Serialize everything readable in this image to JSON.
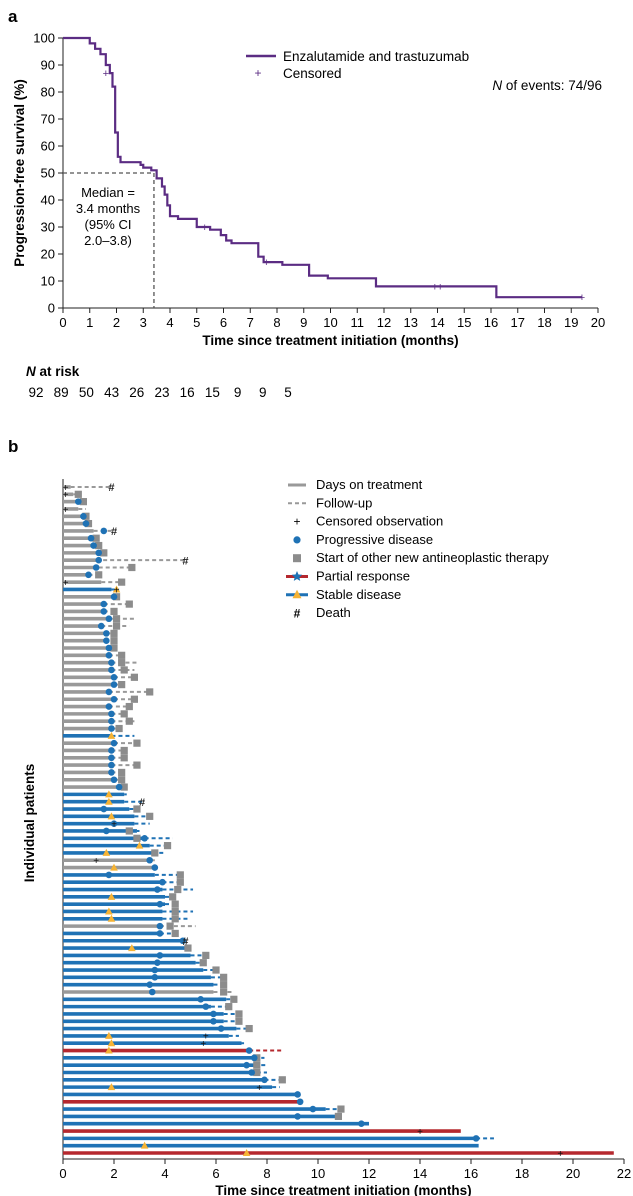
{
  "panel_a": {
    "panel_label": "a",
    "legend": {
      "line": "Enzalutamide and trastuzumab",
      "censored": "Censored"
    },
    "events_prefix": "N",
    "events_text": " of events: 74/96",
    "median": [
      "Median =",
      "3.4 months",
      "(95% CI",
      "2.0–3.8)"
    ],
    "at_risk_n": "N",
    "at_risk_rest": " at risk",
    "at_risk_values": [
      "92",
      "89",
      "50",
      "43",
      "26",
      "23",
      "16",
      "15",
      "9",
      "9",
      "5"
    ]
  },
  "panel_b": {
    "panel_label": "b",
    "legend": [
      "Days on treatment",
      "Follow-up",
      "Censored observation",
      "Progressive disease",
      "Start of other new antineoplastic therapy",
      "Partial response",
      "Stable disease",
      "Death"
    ]
  },
  "colors": {
    "km_line": "#5b2c83",
    "gray": "#999999",
    "blue": "#1f72b5",
    "red": "#b5282e",
    "stable": "#f5b335",
    "box": "#8c8c8c"
  },
  "chart_data": [
    {
      "type": "line",
      "title": "",
      "xlabel": "Time since treatment initiation (months)",
      "ylabel": "Progression-free survival (%)",
      "xlim": [
        0,
        20
      ],
      "ylim": [
        0,
        100
      ],
      "xticks": [
        0,
        1,
        2,
        3,
        4,
        5,
        6,
        7,
        8,
        9,
        10,
        11,
        12,
        13,
        14,
        15,
        16,
        17,
        18,
        19,
        20
      ],
      "yticks": [
        0,
        10,
        20,
        30,
        40,
        50,
        60,
        70,
        80,
        90,
        100
      ],
      "series": [
        {
          "name": "Enzalutamide and trastuzumab",
          "x": [
            0,
            1.0,
            1.2,
            1.4,
            1.6,
            1.75,
            1.85,
            1.95,
            2.05,
            2.15,
            2.3,
            2.9,
            3.0,
            3.3,
            3.5,
            3.7,
            3.8,
            3.9,
            4.0,
            4.15,
            4.3,
            4.6,
            5.0,
            5.5,
            5.9,
            6.1,
            6.3,
            7.0,
            7.3,
            7.5,
            7.8,
            8.2,
            9.2,
            9.9,
            11.7,
            13.4,
            16.2,
            19.4
          ],
          "y": [
            100,
            98,
            96,
            94,
            90,
            87,
            82,
            65,
            56,
            54,
            54,
            53,
            52,
            51,
            48,
            45,
            42,
            38,
            34,
            34,
            33,
            33,
            30,
            29,
            27,
            25,
            24,
            24,
            19,
            17,
            17,
            16,
            12,
            11,
            8,
            8,
            4,
            4
          ]
        }
      ],
      "censored": [
        [
          1.6,
          87
        ],
        [
          5.3,
          30
        ],
        [
          7.6,
          17
        ],
        [
          13.9,
          8
        ],
        [
          14.1,
          8
        ],
        [
          19.4,
          4
        ]
      ],
      "median_months": 3.4
    },
    {
      "type": "swimmer",
      "title": "",
      "xlabel": "Time since treatment initiation (months)",
      "ylabel": "Individual patients",
      "xlim": [
        0,
        22
      ],
      "xticks": [
        0,
        2,
        4,
        6,
        8,
        10,
        12,
        14,
        16,
        18,
        20,
        22
      ],
      "rows": [
        {
          "c": "g",
          "t": 0.3,
          "f": 1.9,
          "cen": 0.1,
          "dth": 1.9
        },
        {
          "c": "g",
          "t": 0.4,
          "f": 0.6,
          "box": 0.6,
          "cen": 0.1
        },
        {
          "c": "g",
          "t": 0.5,
          "f": 0.8,
          "pd": 0.6,
          "box": 0.8
        },
        {
          "c": "g",
          "t": 0.6,
          "f": 0.9,
          "cen": 0.1
        },
        {
          "c": "g",
          "t": 0.7,
          "f": 0.9,
          "pd": 0.8,
          "box": 0.9
        },
        {
          "c": "g",
          "t": 0.8,
          "f": 1.0,
          "pd": 0.9,
          "box": 1.0
        },
        {
          "c": "g",
          "t": 1.2,
          "f": 2.0,
          "pd": 1.6,
          "dth": 2.0
        },
        {
          "c": "g",
          "t": 1.0,
          "f": 1.3,
          "pd": 1.1,
          "box": 1.3
        },
        {
          "c": "g",
          "t": 1.3,
          "f": 1.4,
          "pd": 1.2,
          "box": 1.4
        },
        {
          "c": "g",
          "t": 1.5,
          "f": 1.6,
          "pd": 1.4,
          "box": 1.6
        },
        {
          "c": "g",
          "t": 1.3,
          "f": 4.8,
          "pd": 1.4,
          "dth": 4.8
        },
        {
          "c": "g",
          "t": 1.4,
          "f": 2.7,
          "pd": 1.3,
          "box": 2.7
        },
        {
          "c": "g",
          "t": 1.0,
          "f": 1.4,
          "pd": 1.0,
          "box": 1.4
        },
        {
          "c": "g",
          "t": 1.5,
          "f": 2.3,
          "cen": 0.1,
          "box": 2.3
        },
        {
          "c": "b",
          "t": 1.9,
          "f": 2.2,
          "sd": 2.1,
          "cen": 2.1
        },
        {
          "c": "g",
          "t": 2.1,
          "f": 2.1,
          "pd": 2.0,
          "box": 2.1
        },
        {
          "c": "g",
          "t": 1.6,
          "f": 2.6,
          "pd": 1.6,
          "box": 2.6
        },
        {
          "c": "g",
          "t": 1.6,
          "f": 2.0,
          "pd": 1.6,
          "box": 2.0
        },
        {
          "c": "g",
          "t": 1.8,
          "f": 2.8,
          "pd": 1.8,
          "box": 2.1
        },
        {
          "c": "g",
          "t": 1.5,
          "f": 2.6,
          "pd": 1.5,
          "box": 2.1
        },
        {
          "c": "g",
          "t": 1.7,
          "f": 2.0,
          "pd": 1.7,
          "box": 2.0
        },
        {
          "c": "g",
          "t": 1.6,
          "f": 2.0,
          "pd": 1.7,
          "box": 2.0
        },
        {
          "c": "g",
          "t": 1.8,
          "f": 2.0,
          "pd": 1.8,
          "box": 2.0
        },
        {
          "c": "g",
          "t": 1.8,
          "f": 2.3,
          "pd": 1.8,
          "box": 2.3
        },
        {
          "c": "g",
          "t": 1.9,
          "f": 2.9,
          "pd": 1.9,
          "box": 2.3
        },
        {
          "c": "g",
          "t": 1.9,
          "f": 2.8,
          "pd": 1.9,
          "box": 2.4
        },
        {
          "c": "g",
          "t": 2.0,
          "f": 2.8,
          "pd": 2.0,
          "box": 2.8
        },
        {
          "c": "g",
          "t": 2.0,
          "f": 2.3,
          "pd": 2.0,
          "box": 2.3
        },
        {
          "c": "g",
          "t": 1.8,
          "f": 3.4,
          "pd": 1.8,
          "box": 3.4
        },
        {
          "c": "g",
          "t": 2.0,
          "f": 2.8,
          "pd": 2.0,
          "box": 2.8
        },
        {
          "c": "g",
          "t": 1.8,
          "f": 2.6,
          "pd": 1.8,
          "box": 2.6
        },
        {
          "c": "g",
          "t": 1.9,
          "f": 2.4,
          "pd": 1.9,
          "box": 2.4
        },
        {
          "c": "g",
          "t": 1.9,
          "f": 2.8,
          "pd": 1.9,
          "box": 2.6
        },
        {
          "c": "g",
          "t": 1.9,
          "f": 2.2,
          "pd": 1.9,
          "box": 2.2
        },
        {
          "c": "b",
          "t": 1.9,
          "f": 2.8,
          "sd": 1.9
        },
        {
          "c": "g",
          "t": 2.0,
          "f": 2.9,
          "pd": 2.0,
          "box": 2.9
        },
        {
          "c": "g",
          "t": 1.9,
          "f": 2.4,
          "pd": 1.9,
          "box": 2.4
        },
        {
          "c": "g",
          "t": 1.9,
          "f": 2.4,
          "pd": 1.9,
          "box": 2.4
        },
        {
          "c": "g",
          "t": 1.9,
          "f": 2.9,
          "pd": 1.9,
          "box": 2.9
        },
        {
          "c": "g",
          "t": 1.9,
          "f": 2.3,
          "pd": 1.9,
          "box": 2.3
        },
        {
          "c": "g",
          "t": 2.0,
          "f": 2.3,
          "pd": 2.0,
          "box": 2.3
        },
        {
          "c": "g",
          "t": 2.2,
          "f": 2.4,
          "pd": 2.2,
          "box": 2.4
        },
        {
          "c": "b",
          "t": 2.4,
          "f": 2.5,
          "sd": 1.8
        },
        {
          "c": "b",
          "t": 2.4,
          "f": 3.1,
          "sd": 1.8,
          "dth": 3.1
        },
        {
          "c": "b",
          "t": 2.6,
          "f": 2.9,
          "pd": 1.6,
          "box": 2.9
        },
        {
          "c": "b",
          "t": 2.8,
          "f": 3.4,
          "sd": 1.9,
          "box": 3.4
        },
        {
          "c": "b",
          "t": 2.8,
          "f": 3.4,
          "pd": 2.0,
          "cen": 2.0
        },
        {
          "c": "b",
          "t": 2.9,
          "f": 3.0,
          "pd": 1.7,
          "box": 2.6
        },
        {
          "c": "b",
          "t": 3.2,
          "f": 4.3,
          "pd": 3.2,
          "box": 2.9
        },
        {
          "c": "b",
          "t": 3.4,
          "f": 4.1,
          "sd": 3.0,
          "box": 4.1
        },
        {
          "c": "b",
          "t": 3.5,
          "f": 4.0,
          "sd": 1.7,
          "box": 3.6
        },
        {
          "c": "g",
          "t": 3.5,
          "f": 3.6,
          "pd": 3.4,
          "cen": 1.3
        },
        {
          "c": "g",
          "t": 3.6,
          "f": 3.6,
          "sd": 2.0,
          "pd": 3.6
        },
        {
          "c": "b",
          "t": 3.6,
          "f": 4.6,
          "pd": 1.8,
          "box": 4.6
        },
        {
          "c": "b",
          "t": 3.9,
          "f": 4.6,
          "pd": 3.9,
          "box": 4.6
        },
        {
          "c": "b",
          "t": 3.9,
          "f": 5.1,
          "pd": 3.7,
          "box": 4.5
        },
        {
          "c": "b",
          "t": 4.0,
          "f": 4.3,
          "sd": 1.9,
          "box": 4.3
        },
        {
          "c": "b",
          "t": 4.0,
          "f": 4.4,
          "pd": 3.8,
          "box": 4.4
        },
        {
          "c": "b",
          "t": 3.9,
          "f": 5.1,
          "sd": 1.8,
          "box": 4.4
        },
        {
          "c": "b",
          "t": 3.9,
          "f": 4.9,
          "sd": 1.9,
          "box": 4.4
        },
        {
          "c": "g",
          "t": 3.8,
          "f": 5.2,
          "pd": 3.8,
          "box": 4.2
        },
        {
          "c": "b",
          "t": 3.8,
          "f": 4.4,
          "pd": 3.8,
          "box": 4.4
        },
        {
          "c": "b",
          "t": 4.7,
          "f": 4.8,
          "pd": 4.7,
          "dth": 4.8
        },
        {
          "c": "b",
          "t": 4.8,
          "f": 4.9,
          "sd": 2.7,
          "box": 4.9
        },
        {
          "c": "b",
          "t": 5.0,
          "f": 5.6,
          "pd": 3.8,
          "box": 5.6
        },
        {
          "c": "b",
          "t": 5.2,
          "f": 5.5,
          "pd": 3.7,
          "box": 5.5
        },
        {
          "c": "b",
          "t": 5.5,
          "f": 6.0,
          "pd": 3.6,
          "box": 6.0
        },
        {
          "c": "b",
          "t": 5.8,
          "f": 6.3,
          "pd": 3.6,
          "box": 6.3
        },
        {
          "c": "b",
          "t": 5.9,
          "f": 6.3,
          "pd": 3.4,
          "box": 6.3
        },
        {
          "c": "g",
          "t": 5.9,
          "f": 6.7,
          "pd": 3.5,
          "box": 6.3
        },
        {
          "c": "b",
          "t": 6.4,
          "f": 6.7,
          "pd": 5.4,
          "box": 6.7
        },
        {
          "c": "b",
          "t": 5.8,
          "f": 6.5,
          "pd": 5.6,
          "box": 6.5
        },
        {
          "c": "b",
          "t": 6.3,
          "f": 6.9,
          "pd": 5.9,
          "box": 6.9
        },
        {
          "c": "b",
          "t": 6.3,
          "f": 6.9,
          "pd": 5.9,
          "box": 6.9
        },
        {
          "c": "b",
          "t": 6.8,
          "f": 7.3,
          "pd": 6.2,
          "box": 7.3
        },
        {
          "c": "b",
          "t": 6.5,
          "f": 6.9,
          "sd": 1.8,
          "cen": 5.6
        },
        {
          "c": "b",
          "t": 7.0,
          "f": 7.1,
          "sd": 1.9,
          "cen": 5.5
        },
        {
          "c": "r",
          "t": 7.3,
          "f": 8.6,
          "sd": 1.8,
          "pd": 7.3
        },
        {
          "c": "b",
          "t": 7.5,
          "f": 7.9,
          "pd": 7.5,
          "box": 7.6
        },
        {
          "c": "b",
          "t": 7.5,
          "f": 8.0,
          "pd": 7.2,
          "box": 7.6
        },
        {
          "c": "b",
          "t": 7.6,
          "f": 8.0,
          "pd": 7.4,
          "box": 7.6
        },
        {
          "c": "b",
          "t": 7.9,
          "f": 8.6,
          "pd": 7.9,
          "box": 8.6
        },
        {
          "c": "b",
          "t": 8.2,
          "f": 8.5,
          "sd": 1.9,
          "cen": 7.7
        },
        {
          "c": "b",
          "t": 9.2,
          "f": 9.3,
          "pd": 9.2
        },
        {
          "c": "r",
          "t": 9.3,
          "f": 9.3,
          "pd": 9.3
        },
        {
          "c": "b",
          "t": 10.3,
          "f": 10.9,
          "pd": 9.8,
          "box": 10.9
        },
        {
          "c": "b",
          "t": 10.7,
          "f": 10.8,
          "pd": 9.2,
          "box": 10.8
        },
        {
          "c": "b",
          "t": 12.0,
          "f": 12.0,
          "pd": 11.7
        },
        {
          "c": "r",
          "t": 15.6,
          "f": 15.6,
          "cen": 14.0
        },
        {
          "c": "b",
          "t": 16.2,
          "f": 16.9,
          "pd": 16.2
        },
        {
          "c": "b",
          "t": 16.3,
          "f": 16.3,
          "sd": 3.2
        },
        {
          "c": "r",
          "t": 21.6,
          "f": 21.6,
          "cen": 19.5,
          "sd": 7.2
        }
      ]
    }
  ]
}
